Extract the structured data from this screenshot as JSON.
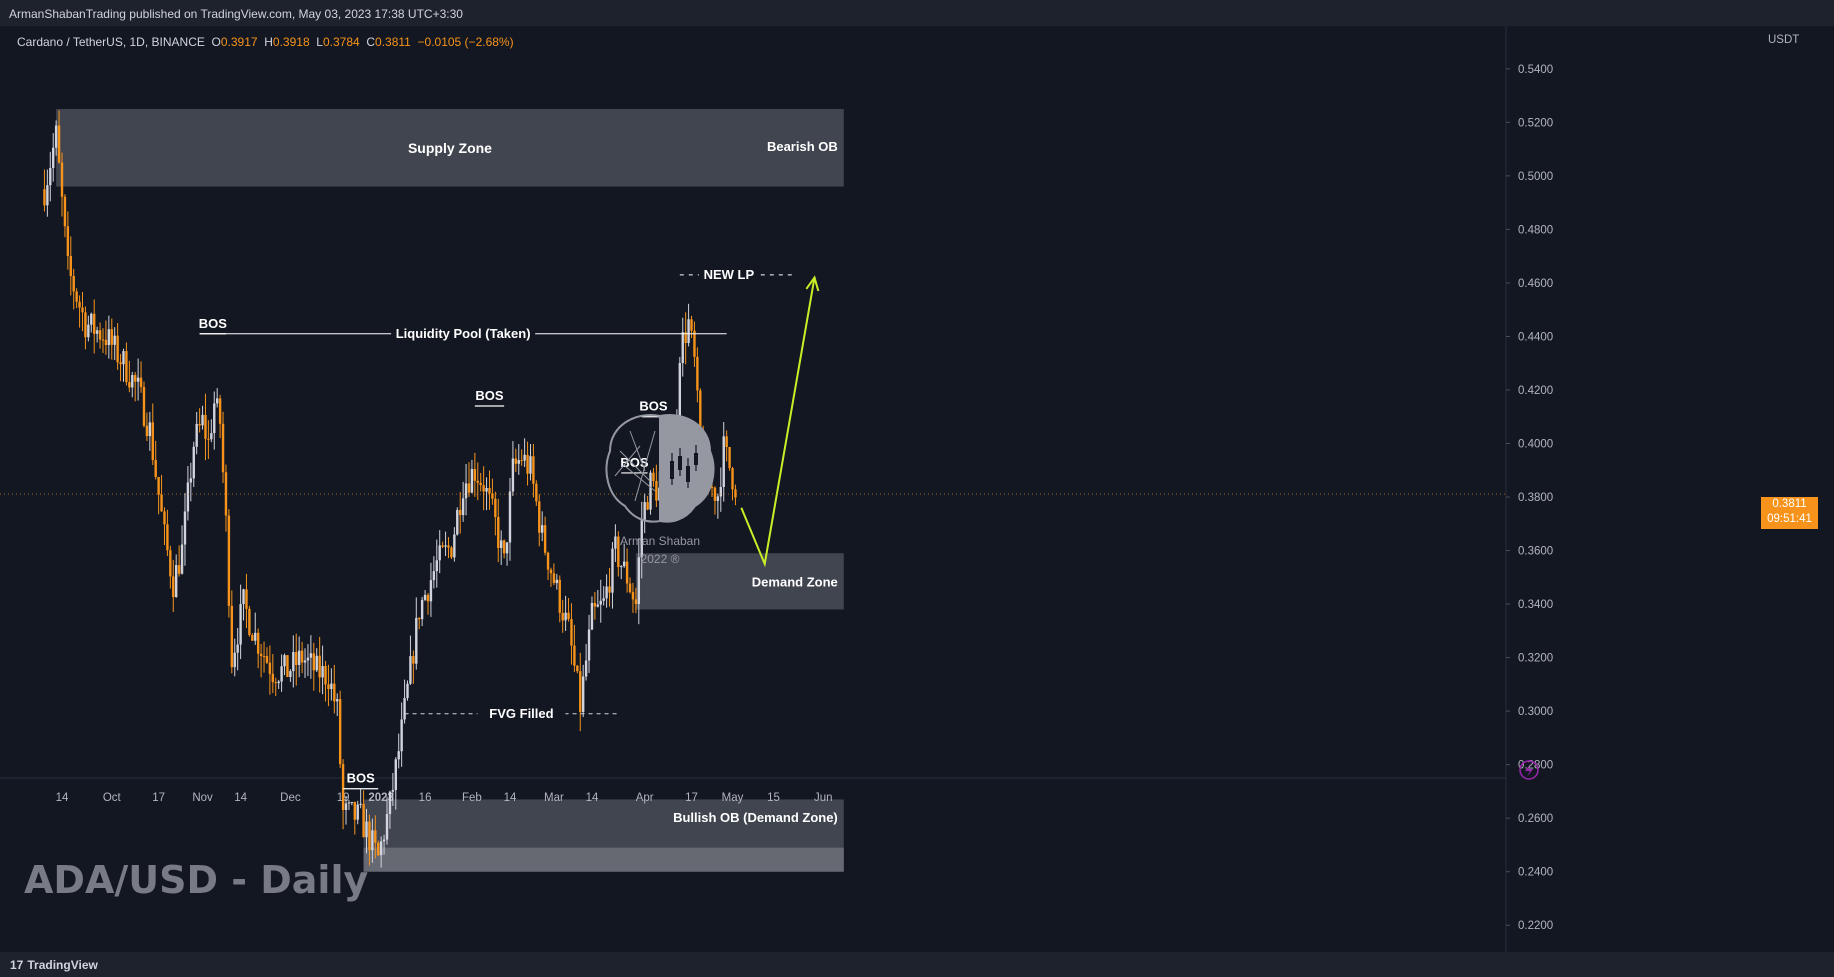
{
  "header": {
    "published": "ArmanShabanTrading published on TradingView.com, May 03, 2023 17:38 UTC+3:30"
  },
  "symbol_line": {
    "name": "Cardano / TetherUS, 1D, BINANCE",
    "o_label": "O",
    "o_value": "0.3917",
    "h_label": "H",
    "h_value": "0.3918",
    "l_label": "L",
    "l_value": "0.3784",
    "c_label": "C",
    "c_value": "0.3811",
    "change": "−0.0105 (−2.68%)"
  },
  "watermark": "ADA/USD - Daily",
  "logo": {
    "name": "Arman Shaban",
    "year": "2022 ®"
  },
  "price_tag": {
    "price": "0.3811",
    "countdown": "09:51:41"
  },
  "footer": {
    "brand": "TradingView"
  },
  "colors": {
    "up": "#d1d4dc",
    "down": "#f7931a",
    "background": "#131722",
    "zone": "#4a4d57",
    "arrow": "#c6ef27"
  },
  "annotations": {
    "supply_zone": "Supply Zone",
    "bearish_ob": "Bearish OB",
    "demand_zone": "Demand Zone",
    "bullish_ob": "Bullish OB (Demand Zone)",
    "liquidity_pool": "Liquidity Pool (Taken)",
    "new_lp": "NEW LP",
    "fvg": "FVG Filled",
    "bos": "BOS"
  },
  "chart_data": {
    "type": "candlestick",
    "title": "ADA/USD - Daily",
    "ylabel": "USDT",
    "ylim": [
      0.21,
      0.556
    ],
    "y_ticks": [
      "0.5400",
      "0.5200",
      "0.5000",
      "0.4800",
      "0.4600",
      "0.4400",
      "0.4200",
      "0.4000",
      "0.3800",
      "0.3600",
      "0.3400",
      "0.3200",
      "0.3000",
      "0.2800",
      "0.2600",
      "0.2400",
      "0.2200"
    ],
    "x_ticks": [
      "14",
      "Oct",
      "17",
      "Nov",
      "14",
      "Dec",
      "19",
      "2023",
      "16",
      "Feb",
      "14",
      "Mar",
      "14",
      "Apr",
      "17",
      "May",
      "15",
      "Jun"
    ],
    "x_tick_dates": [
      "2022-09-14",
      "2022-10-01",
      "2022-10-17",
      "2022-11-01",
      "2022-11-14",
      "2022-12-01",
      "2022-12-19",
      "2023-01-01",
      "2023-01-16",
      "2023-02-01",
      "2023-02-14",
      "2023-03-01",
      "2023-03-14",
      "2023-04-01",
      "2023-04-17",
      "2023-05-01",
      "2023-05-15",
      "2023-06-01"
    ],
    "close_keypoints": [
      [
        "2022-09-08",
        0.495
      ],
      [
        "2022-09-12",
        0.515
      ],
      [
        "2022-09-16",
        0.465
      ],
      [
        "2022-09-22",
        0.445
      ],
      [
        "2022-09-29",
        0.44
      ],
      [
        "2022-10-05",
        0.43
      ],
      [
        "2022-10-10",
        0.42
      ],
      [
        "2022-10-14",
        0.405
      ],
      [
        "2022-10-19",
        0.365
      ],
      [
        "2022-10-22",
        0.348
      ],
      [
        "2022-10-25",
        0.36
      ],
      [
        "2022-10-29",
        0.4
      ],
      [
        "2022-11-01",
        0.408
      ],
      [
        "2022-11-03",
        0.4
      ],
      [
        "2022-11-05",
        0.415
      ],
      [
        "2022-11-07",
        0.408
      ],
      [
        "2022-11-09",
        0.37
      ],
      [
        "2022-11-11",
        0.32
      ],
      [
        "2022-11-15",
        0.34
      ],
      [
        "2022-11-19",
        0.328
      ],
      [
        "2022-11-25",
        0.315
      ],
      [
        "2022-11-30",
        0.315
      ],
      [
        "2022-12-05",
        0.32
      ],
      [
        "2022-12-10",
        0.315
      ],
      [
        "2022-12-14",
        0.313
      ],
      [
        "2022-12-17",
        0.3
      ],
      [
        "2022-12-19",
        0.262
      ],
      [
        "2022-12-25",
        0.26
      ],
      [
        "2022-12-31",
        0.245
      ],
      [
        "2023-01-04",
        0.265
      ],
      [
        "2023-01-07",
        0.285
      ],
      [
        "2023-01-09",
        0.3
      ],
      [
        "2023-01-14",
        0.338
      ],
      [
        "2023-01-20",
        0.355
      ],
      [
        "2023-01-25",
        0.362
      ],
      [
        "2023-01-29",
        0.385
      ],
      [
        "2023-02-02",
        0.39
      ],
      [
        "2023-02-05",
        0.385
      ],
      [
        "2023-02-09",
        0.37
      ],
      [
        "2023-02-12",
        0.355
      ],
      [
        "2023-02-15",
        0.39
      ],
      [
        "2023-02-18",
        0.395
      ],
      [
        "2023-02-21",
        0.39
      ],
      [
        "2023-02-25",
        0.365
      ],
      [
        "2023-03-02",
        0.345
      ],
      [
        "2023-03-06",
        0.33
      ],
      [
        "2023-03-10",
        0.302
      ],
      [
        "2023-03-14",
        0.335
      ],
      [
        "2023-03-18",
        0.34
      ],
      [
        "2023-03-22",
        0.36
      ],
      [
        "2023-03-26",
        0.35
      ],
      [
        "2023-03-29",
        0.34
      ],
      [
        "2023-03-31",
        0.372
      ],
      [
        "2023-04-03",
        0.385
      ],
      [
        "2023-04-08",
        0.38
      ],
      [
        "2023-04-11",
        0.39
      ],
      [
        "2023-04-13",
        0.435
      ],
      [
        "2023-04-16",
        0.445
      ],
      [
        "2023-04-18",
        0.43
      ],
      [
        "2023-04-20",
        0.398
      ],
      [
        "2023-04-22",
        0.385
      ],
      [
        "2023-04-26",
        0.381
      ],
      [
        "2023-04-28",
        0.398
      ],
      [
        "2023-05-03",
        0.381
      ]
    ],
    "zones": [
      {
        "label": "Supply Zone",
        "side_label": "Bearish OB",
        "from": "2022-09-12",
        "to": "2023-06-08",
        "low": 0.496,
        "high": 0.525
      },
      {
        "label": "Demand Zone",
        "from": "2023-03-29",
        "to": "2023-06-08",
        "low": 0.338,
        "high": 0.359
      },
      {
        "label": "Bullish OB (Demand Zone)",
        "from": "2022-12-26",
        "to": "2023-06-08",
        "low": 0.24,
        "high": 0.267
      }
    ],
    "levels": [
      {
        "label": "Liquidity Pool (Taken)",
        "price": 0.441,
        "from": "2022-10-31",
        "to": "2023-04-29"
      },
      {
        "label": "NEW LP",
        "price": 0.463,
        "from": "2023-04-13",
        "to": "2023-05-22",
        "dashed": true
      },
      {
        "label": "FVG Filled",
        "price": 0.299,
        "from": "2023-01-09",
        "to": "2023-03-23",
        "dashed": true
      },
      {
        "label": "BOS",
        "price": 0.441,
        "from": "2022-10-31",
        "to": "2022-11-09"
      },
      {
        "label": "BOS",
        "price": 0.271,
        "from": "2022-12-19",
        "to": "2022-12-31"
      },
      {
        "label": "BOS",
        "price": 0.414,
        "from": "2023-02-02",
        "to": "2023-02-12"
      },
      {
        "label": "BOS",
        "price": 0.41,
        "from": "2023-03-31",
        "to": "2023-04-08"
      },
      {
        "label": "BOS",
        "price": 0.389,
        "from": "2023-03-24",
        "to": "2023-04-02"
      }
    ],
    "projection": [
      [
        "2023-05-04",
        0.376
      ],
      [
        "2023-05-12",
        0.355
      ],
      [
        "2023-05-29",
        0.462
      ]
    ]
  }
}
